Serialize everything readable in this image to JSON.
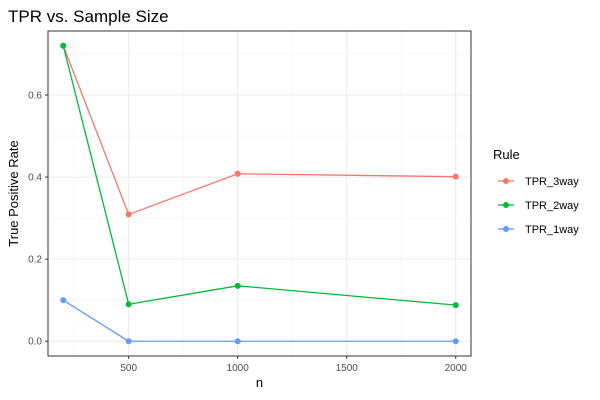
{
  "chart_data": {
    "type": "line",
    "title": "TPR vs. Sample Size",
    "xlabel": "n",
    "ylabel": "True Positive Rate",
    "x": [
      200,
      500,
      1000,
      2000
    ],
    "xticks": [
      500,
      1000,
      1500,
      2000
    ],
    "xlim": [
      130,
      2070
    ],
    "yticks": [
      0.0,
      0.2,
      0.4,
      0.6
    ],
    "ylim": [
      -0.036,
      0.756
    ],
    "grid": true,
    "legend": {
      "title": "Rule",
      "position": "right"
    },
    "series": [
      {
        "name": "TPR_3way",
        "color": "#F8766D",
        "values": [
          0.72,
          0.309,
          0.408,
          0.401
        ]
      },
      {
        "name": "TPR_2way",
        "color": "#00BA38",
        "values": [
          0.72,
          0.09,
          0.135,
          0.088
        ]
      },
      {
        "name": "TPR_1way",
        "color": "#619CFF",
        "values": [
          0.1,
          0.0,
          0.0,
          0.0
        ]
      }
    ]
  }
}
